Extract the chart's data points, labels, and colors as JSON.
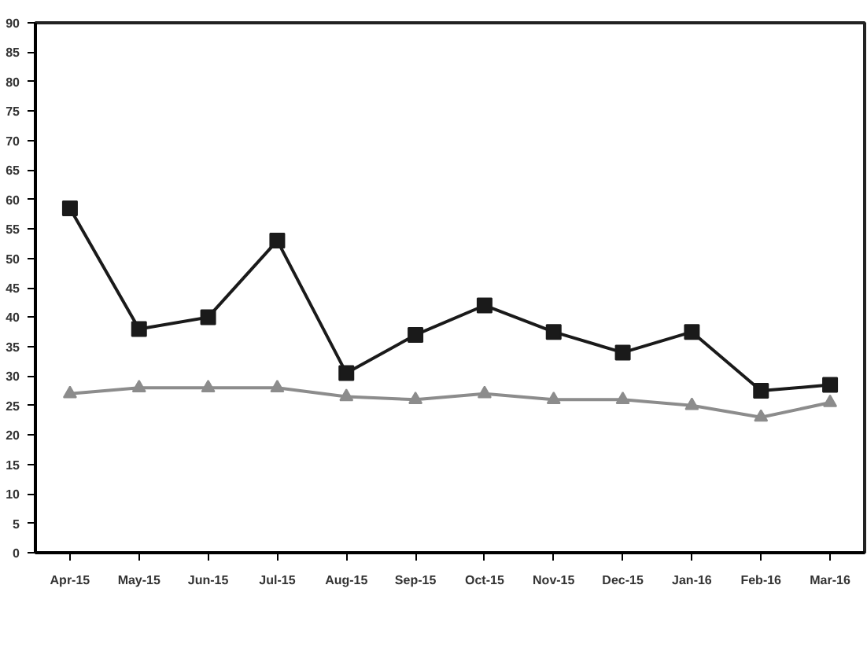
{
  "chart_data": {
    "type": "line",
    "categories": [
      "Apr-15",
      "May-15",
      "Jun-15",
      "Jul-15",
      "Aug-15",
      "Sep-15",
      "Oct-15",
      "Nov-15",
      "Dec-15",
      "Jan-16",
      "Feb-16",
      "Mar-16"
    ],
    "series": [
      {
        "color": "#1a1a1a",
        "marker": "square",
        "values": [
          58.5,
          38,
          40,
          53,
          30.5,
          37,
          42,
          37.5,
          34,
          37.5,
          27.5,
          28.5
        ]
      },
      {
        "color": "#8c8c8c",
        "marker": "triangle",
        "values": [
          27,
          28,
          28,
          28,
          26.5,
          26,
          27,
          26,
          26,
          25,
          23,
          25.5
        ]
      }
    ],
    "ylim": [
      0,
      90
    ],
    "yticks": [
      0,
      5,
      10,
      15,
      20,
      25,
      30,
      35,
      40,
      45,
      50,
      55,
      60,
      65,
      70,
      75,
      80,
      85,
      90
    ],
    "grid": false
  }
}
